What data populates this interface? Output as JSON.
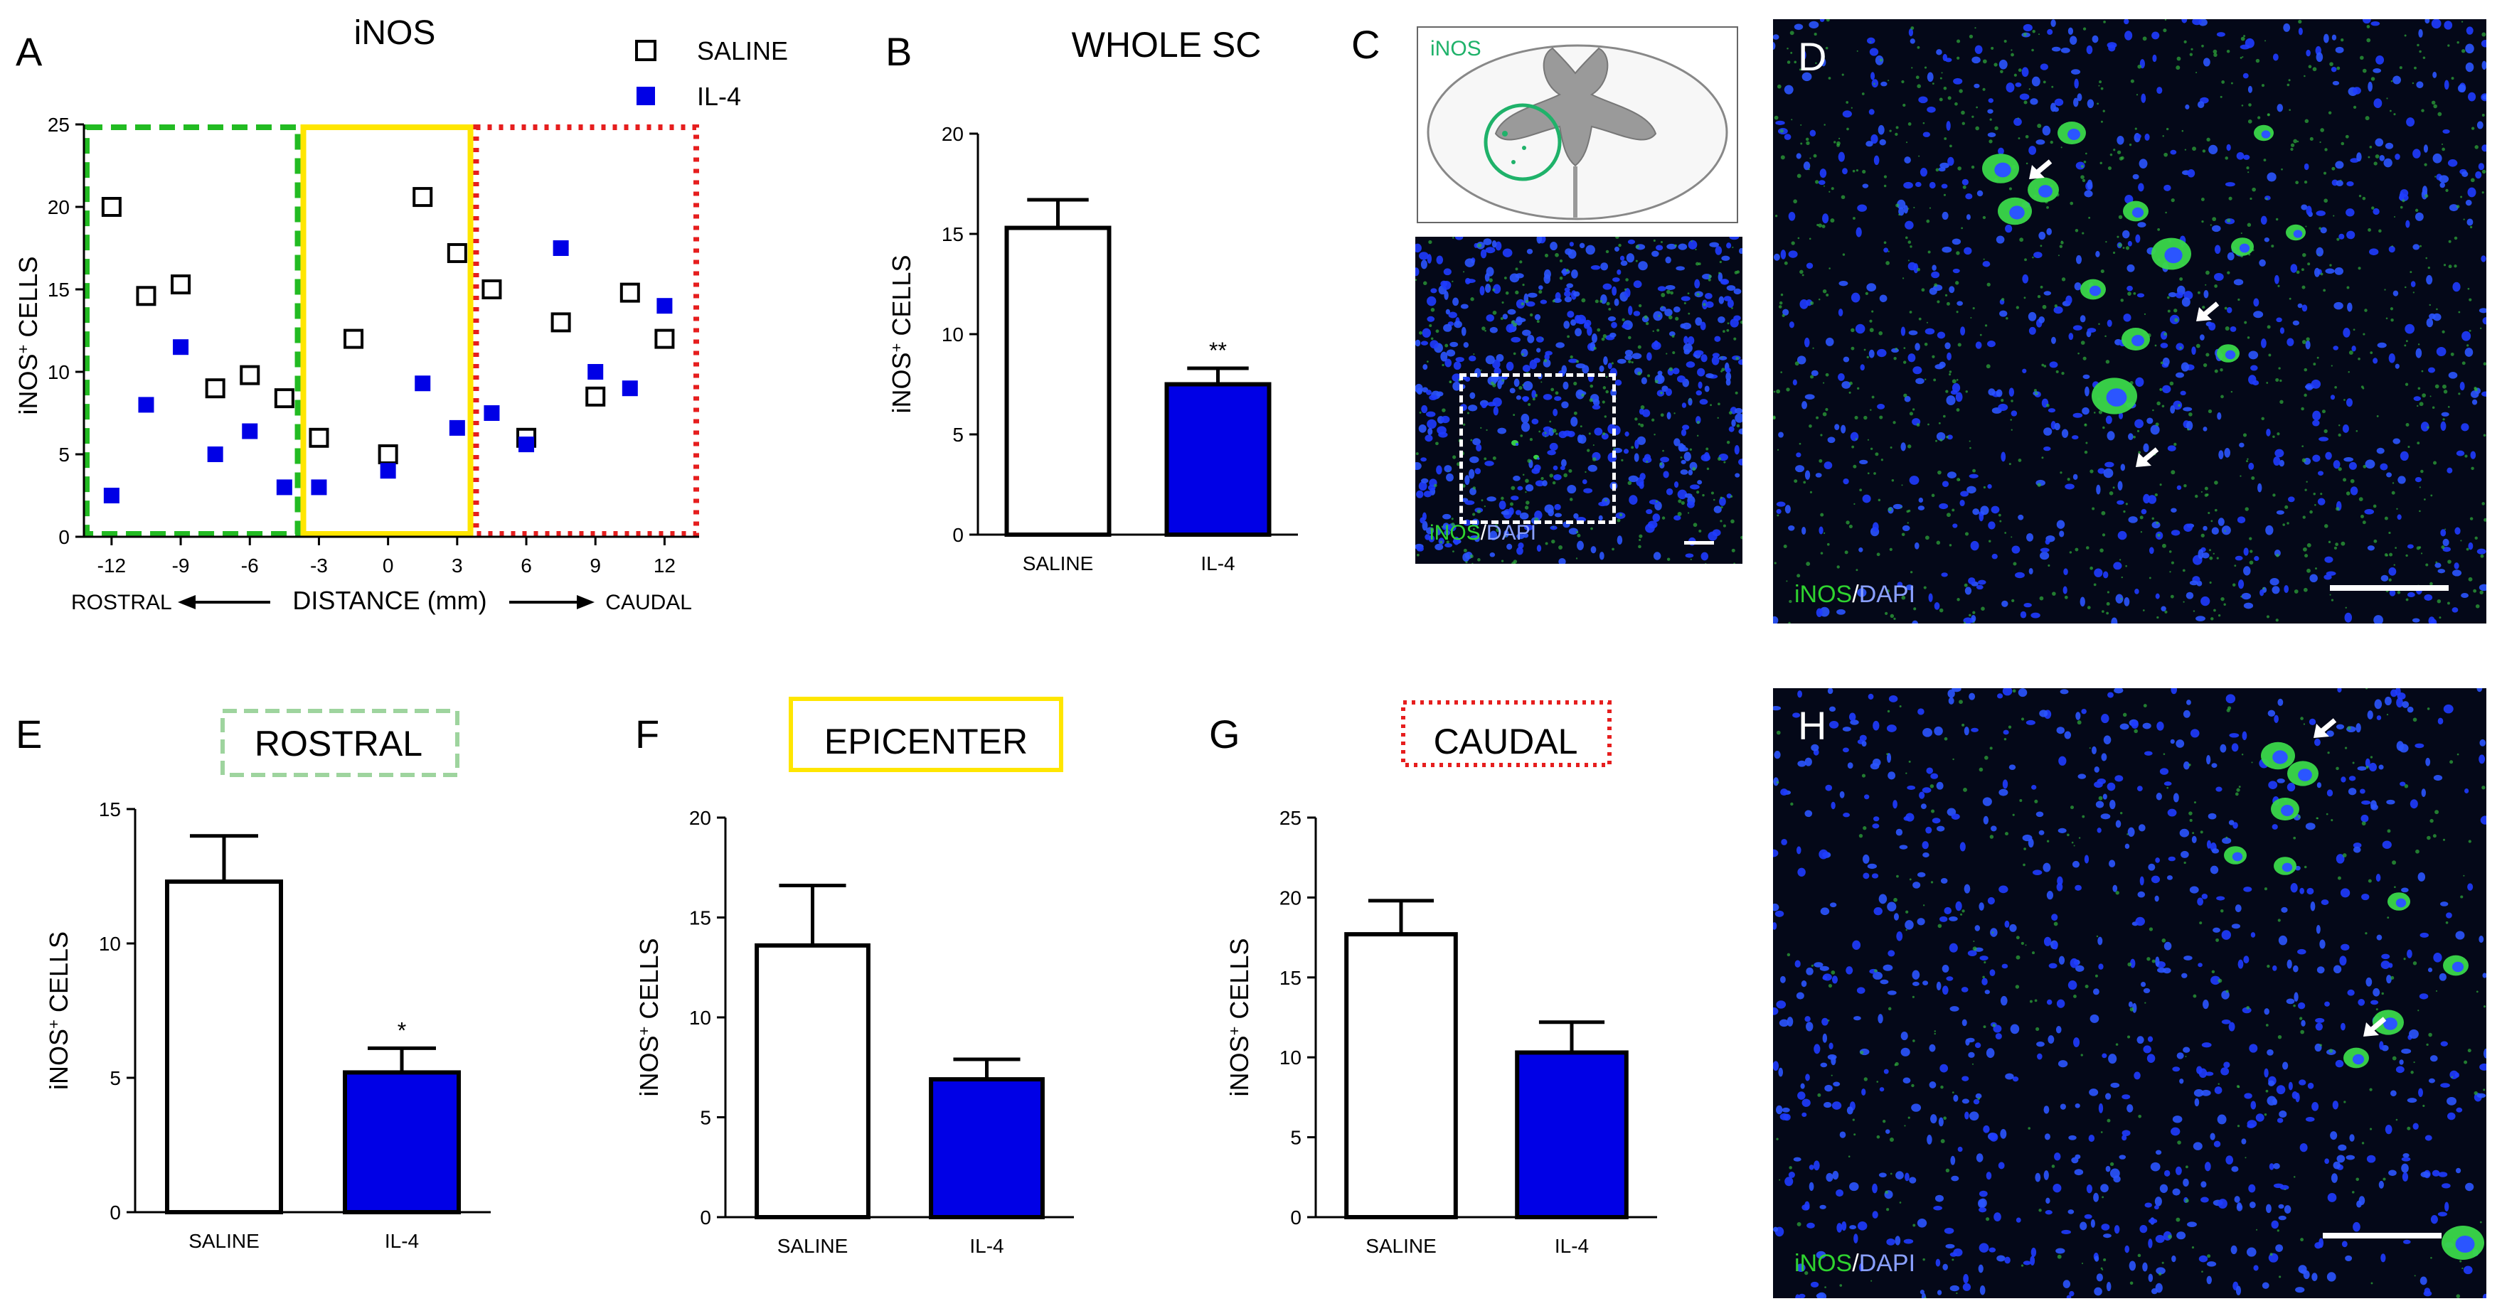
{
  "figure": {
    "panels": {
      "A": "A",
      "B": "B",
      "C": "C",
      "D": "D",
      "E": "E",
      "F": "F",
      "G": "G",
      "H": "H"
    },
    "colors": {
      "saline": "#ffffff",
      "il4": "#0000e6",
      "rostral_box": "#22bb22",
      "epicenter_box": "#ffe600",
      "caudal_box": "#e61e1e",
      "rostral_frame": "#9ed49e"
    }
  },
  "chart_data": [
    {
      "id": "A",
      "type": "scatter",
      "title": "iNOS",
      "ylabel": "iNOS+ CELLS",
      "xlabel": "DISTANCE (mm)",
      "xlabel_left": "ROSTRAL",
      "xlabel_right": "CAUDAL",
      "xlim": [
        -13.2,
        13.5
      ],
      "ylim": [
        0,
        25
      ],
      "xticks": [
        -12,
        -9,
        -6,
        -3,
        0,
        3,
        6,
        9,
        12
      ],
      "yticks": [
        0,
        5,
        10,
        15,
        20,
        25
      ],
      "regions": [
        {
          "name": "rostral",
          "x": [
            -13.2,
            -3.8
          ],
          "style": "dashed"
        },
        {
          "name": "epicenter",
          "x": [
            -3.8,
            3.7
          ],
          "style": "solid"
        },
        {
          "name": "caudal",
          "x": [
            3.7,
            13.5
          ],
          "style": "dotted"
        }
      ],
      "legend_position": "top-right",
      "series": [
        {
          "name": "SALINE",
          "marker": "open-square",
          "points": [
            [
              -12,
              20
            ],
            [
              -10.5,
              14.6
            ],
            [
              -9,
              15.3
            ],
            [
              -7.5,
              9
            ],
            [
              -6,
              9.8
            ],
            [
              -4.5,
              8.4
            ],
            [
              -3,
              6
            ],
            [
              -1.5,
              12
            ],
            [
              0,
              5
            ],
            [
              1.5,
              20.6
            ],
            [
              3,
              17.2
            ],
            [
              4.5,
              15
            ],
            [
              6,
              6
            ],
            [
              7.5,
              13
            ],
            [
              9,
              8.5
            ],
            [
              10.5,
              14.8
            ],
            [
              12,
              12
            ]
          ]
        },
        {
          "name": "IL-4",
          "marker": "filled-square",
          "points": [
            [
              -12,
              2.5
            ],
            [
              -10.5,
              8
            ],
            [
              -9,
              11.5
            ],
            [
              -7.5,
              5
            ],
            [
              -6,
              6.4
            ],
            [
              -4.5,
              3
            ],
            [
              -3,
              3
            ],
            [
              0,
              4
            ],
            [
              1.5,
              9.3
            ],
            [
              3,
              6.6
            ],
            [
              4.5,
              7.5
            ],
            [
              6,
              5.6
            ],
            [
              7.5,
              17.5
            ],
            [
              9,
              10
            ],
            [
              10.5,
              9
            ],
            [
              12,
              14
            ]
          ]
        }
      ]
    },
    {
      "id": "B",
      "type": "bar",
      "title": "WHOLE SC",
      "ylabel": "iNOS+ CELLS",
      "categories": [
        "SALINE",
        "IL-4"
      ],
      "values": [
        15.3,
        7.5
      ],
      "errors": [
        1.4,
        0.8
      ],
      "ylim": [
        0,
        20
      ],
      "yticks": [
        0,
        5,
        10,
        15,
        20
      ],
      "annotations": [
        "",
        "**"
      ]
    },
    {
      "id": "E",
      "type": "bar",
      "title": "ROSTRAL",
      "ylabel": "iNOS+ CELLS",
      "categories": [
        "SALINE",
        "IL-4"
      ],
      "values": [
        12.3,
        5.2
      ],
      "errors": [
        1.7,
        0.9
      ],
      "ylim": [
        0,
        15
      ],
      "yticks": [
        0,
        5,
        10,
        15
      ],
      "annotations": [
        "",
        "*"
      ]
    },
    {
      "id": "F",
      "type": "bar",
      "title": "EPICENTER",
      "ylabel": "iNOS+ CELLS",
      "categories": [
        "SALINE",
        "IL-4"
      ],
      "values": [
        13.6,
        6.9
      ],
      "errors": [
        3.0,
        1.0
      ],
      "ylim": [
        0,
        20
      ],
      "yticks": [
        0,
        5,
        10,
        15,
        20
      ],
      "annotations": [
        "",
        ""
      ]
    },
    {
      "id": "G",
      "type": "bar",
      "title": "CAUDAL",
      "ylabel": "iNOS+ CELLS",
      "categories": [
        "SALINE",
        "IL-4"
      ],
      "values": [
        17.7,
        10.3
      ],
      "errors": [
        2.1,
        1.9
      ],
      "ylim": [
        0,
        25
      ],
      "yticks": [
        0,
        5,
        10,
        15,
        20,
        25
      ],
      "annotations": [
        "",
        ""
      ]
    }
  ],
  "microscopy": {
    "c_schematic_label": "iNOS",
    "c_stain": {
      "green": "iNOS",
      "sep": "/",
      "blue": "DAPI"
    },
    "d_stain": {
      "green": "iNOS",
      "sep": "/",
      "blue": "DAPI"
    },
    "h_stain": {
      "green": "iNOS",
      "sep": "/",
      "blue": "DAPI"
    }
  }
}
